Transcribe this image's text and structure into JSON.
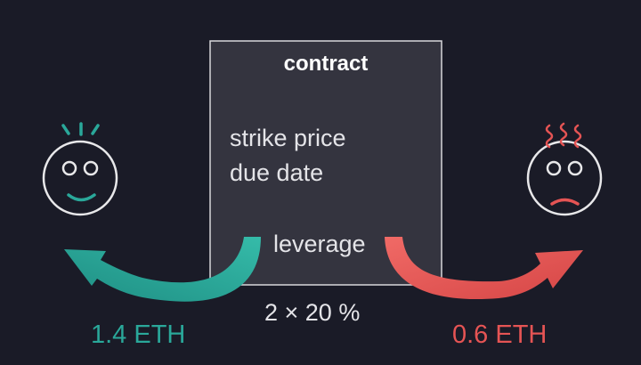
{
  "colors": {
    "background": "#1a1b27",
    "box_fill": "#34343f",
    "box_border": "#d8d8dc",
    "text": "#e4e4e8",
    "winner": "#2aa89a",
    "loser": "#e55454",
    "face_outline": "#e8e8ea"
  },
  "contract": {
    "title": "contract",
    "terms": [
      "strike price",
      "due date"
    ],
    "leverage_label": "leverage"
  },
  "multiplier": "2 × 20 %",
  "parties": {
    "left": {
      "mood": "happy",
      "icon": "happy-face-icon",
      "payout": "1.4 ETH"
    },
    "right": {
      "mood": "sad",
      "icon": "sad-face-icon",
      "payout": "0.6 ETH"
    }
  }
}
